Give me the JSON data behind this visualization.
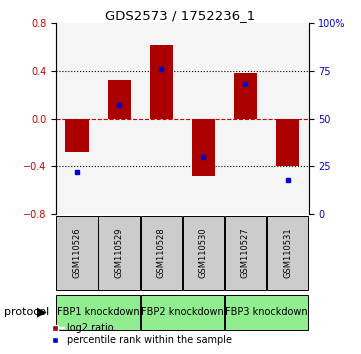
{
  "title": "GDS2573 / 1752236_1",
  "samples": [
    "GSM110526",
    "GSM110529",
    "GSM110528",
    "GSM110530",
    "GSM110527",
    "GSM110531"
  ],
  "log2_ratio": [
    -0.28,
    0.32,
    0.62,
    -0.48,
    0.38,
    -0.4
  ],
  "percentile_rank": [
    22,
    57,
    76,
    30,
    68,
    18
  ],
  "bar_color": "#aa0000",
  "dot_color": "#0000cc",
  "ylim_left": [
    -0.8,
    0.8
  ],
  "ylim_right": [
    0,
    100
  ],
  "yticks_left": [
    -0.8,
    -0.4,
    0,
    0.4,
    0.8
  ],
  "yticks_right": [
    0,
    25,
    50,
    75,
    100
  ],
  "hline_color": "#cc0000",
  "dotted_color": "black",
  "background_color": "#ffffff",
  "sample_box_color": "#cccccc",
  "protocol_color": "#90ee90",
  "protocol_label": "protocol",
  "legend_log2": "log2 ratio",
  "legend_pct": "percentile rank within the sample",
  "protocol_groups": [
    [
      0,
      1,
      "FBP1 knockdown"
    ],
    [
      2,
      3,
      "FBP2 knockdown"
    ],
    [
      4,
      5,
      "FBP3 knockdown"
    ]
  ]
}
